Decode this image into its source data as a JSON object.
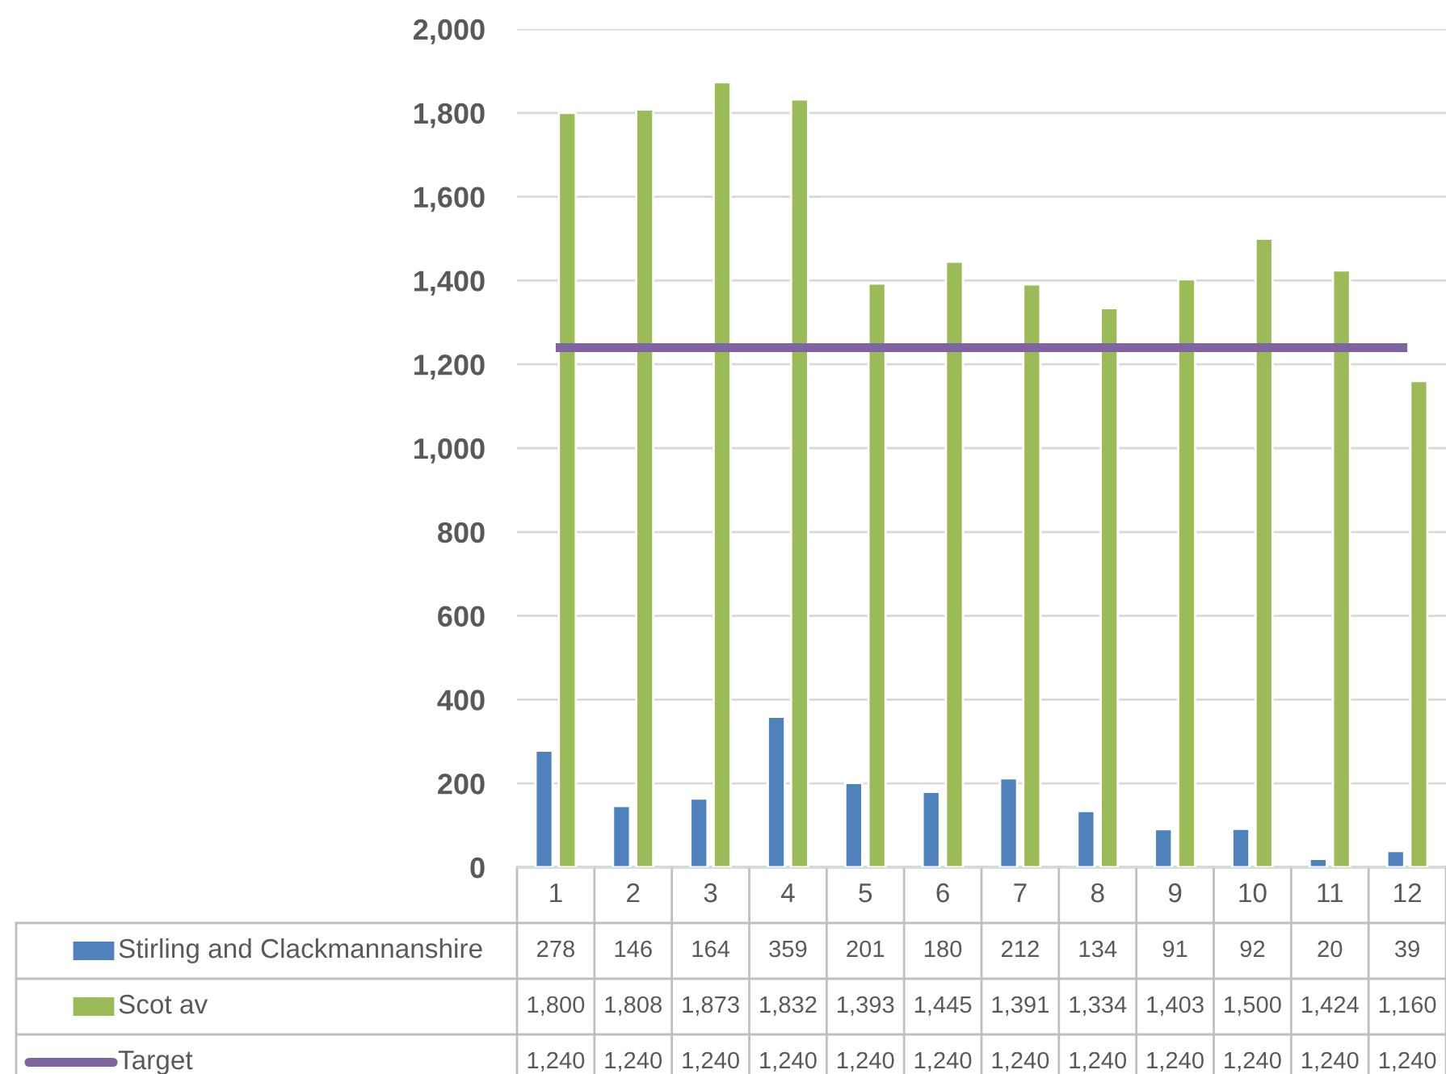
{
  "chart_data": {
    "type": "bar",
    "categories": [
      "1",
      "2",
      "3",
      "4",
      "5",
      "6",
      "7",
      "8",
      "9",
      "10",
      "11",
      "12"
    ],
    "series": [
      {
        "name": "Stirling and Clackmannanshire",
        "color": "#4f81bd",
        "values": [
          278,
          146,
          164,
          359,
          201,
          180,
          212,
          134,
          91,
          92,
          20,
          39
        ],
        "value_labels": [
          "278",
          "146",
          "164",
          "359",
          "201",
          "180",
          "212",
          "134",
          "91",
          "92",
          "20",
          "39"
        ]
      },
      {
        "name": "Scot av",
        "color": "#9bbb59",
        "values": [
          1800,
          1808,
          1873,
          1832,
          1393,
          1445,
          1391,
          1334,
          1403,
          1500,
          1424,
          1160
        ],
        "value_labels": [
          "1,800",
          "1,808",
          "1,873",
          "1,832",
          "1,393",
          "1,445",
          "1,391",
          "1,334",
          "1,403",
          "1,500",
          "1,424",
          "1,160"
        ]
      },
      {
        "name": "Target",
        "type": "line",
        "color": "#8064a2",
        "values": [
          1240,
          1240,
          1240,
          1240,
          1240,
          1240,
          1240,
          1240,
          1240,
          1240,
          1240,
          1240
        ],
        "value_labels": [
          "1,240",
          "1,240",
          "1,240",
          "1,240",
          "1,240",
          "1,240",
          "1,240",
          "1,240",
          "1,240",
          "1,240",
          "1,240",
          "1,240"
        ]
      }
    ],
    "ylim": [
      0,
      2000
    ],
    "yticks": [
      0,
      200,
      400,
      600,
      800,
      {
        "value": 1000,
        "label": "1,000"
      },
      {
        "value": 1200,
        "label": "1,200"
      },
      {
        "value": 1400,
        "label": "1,400"
      },
      {
        "value": 1600,
        "label": "1,600"
      },
      {
        "value": 1800,
        "label": "1,800"
      },
      {
        "value": 2000,
        "label": "2,000"
      }
    ],
    "grid": "y",
    "legend": "bottom"
  }
}
